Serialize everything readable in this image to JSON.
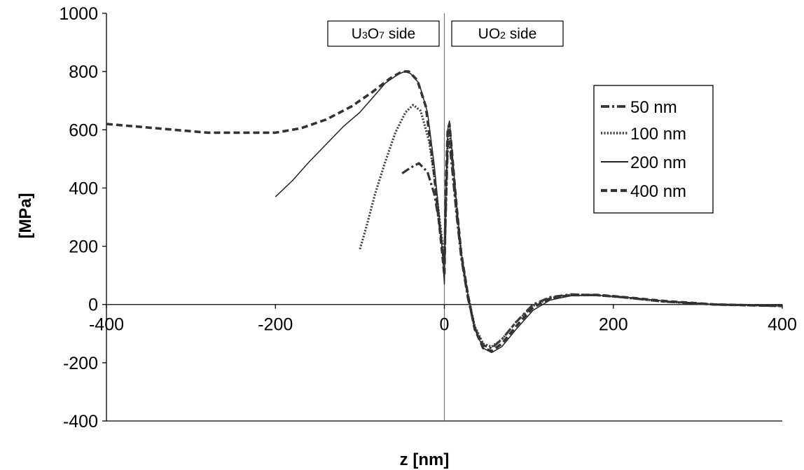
{
  "chart_data": {
    "type": "line",
    "xlabel": "z [nm]",
    "ylabel": "[MPa]",
    "xlim": [
      -400,
      400
    ],
    "ylim": [
      -400,
      1000
    ],
    "x_ticks": [
      "-400",
      "-200",
      "0",
      "200",
      "400"
    ],
    "y_ticks": [
      "1000",
      "800",
      "600",
      "400",
      "200",
      "0",
      "-200",
      "-400"
    ],
    "grid": false,
    "legend_position": "right",
    "annotations": [
      {
        "text_main": "U",
        "sub1": "3",
        "mid": "O",
        "sub2": "7",
        "text_rest": " side",
        "side": "left"
      },
      {
        "text_main": "UO",
        "sub1": "2",
        "mid": "",
        "sub2": "",
        "text_rest": " side",
        "side": "right"
      }
    ],
    "series": [
      {
        "name": "50 nm",
        "style": "dashdot",
        "color": "#333333",
        "points": [
          [
            -50,
            450
          ],
          [
            -40,
            470
          ],
          [
            -30,
            485
          ],
          [
            -20,
            455
          ],
          [
            -12,
            380
          ],
          [
            -6,
            280
          ],
          [
            -2,
            180
          ],
          [
            0,
            140
          ],
          [
            2,
            350
          ],
          [
            4,
            540
          ],
          [
            6,
            560
          ],
          [
            9,
            470
          ],
          [
            14,
            320
          ],
          [
            20,
            160
          ],
          [
            28,
            20
          ],
          [
            36,
            -80
          ],
          [
            46,
            -140
          ],
          [
            56,
            -150
          ],
          [
            68,
            -120
          ],
          [
            85,
            -60
          ],
          [
            105,
            0
          ],
          [
            125,
            25
          ],
          [
            150,
            35
          ],
          [
            180,
            32
          ],
          [
            210,
            25
          ],
          [
            260,
            10
          ],
          [
            320,
            0
          ],
          [
            400,
            -5
          ]
        ]
      },
      {
        "name": "100 nm",
        "style": "dotted",
        "color": "#444444",
        "points": [
          [
            -100,
            190
          ],
          [
            -92,
            270
          ],
          [
            -82,
            380
          ],
          [
            -70,
            490
          ],
          [
            -58,
            590
          ],
          [
            -46,
            660
          ],
          [
            -37,
            685
          ],
          [
            -28,
            665
          ],
          [
            -18,
            560
          ],
          [
            -10,
            400
          ],
          [
            -4,
            250
          ],
          [
            0,
            150
          ],
          [
            2,
            370
          ],
          [
            4,
            560
          ],
          [
            6,
            600
          ],
          [
            9,
            500
          ],
          [
            14,
            340
          ],
          [
            20,
            170
          ],
          [
            28,
            30
          ],
          [
            36,
            -75
          ],
          [
            46,
            -135
          ],
          [
            56,
            -145
          ],
          [
            68,
            -120
          ],
          [
            85,
            -60
          ],
          [
            105,
            -5
          ],
          [
            125,
            22
          ],
          [
            150,
            33
          ],
          [
            180,
            32
          ],
          [
            210,
            25
          ],
          [
            260,
            10
          ],
          [
            320,
            0
          ],
          [
            400,
            -5
          ]
        ]
      },
      {
        "name": "200 nm",
        "style": "solid",
        "color": "#222222",
        "points": [
          [
            -200,
            370
          ],
          [
            -180,
            425
          ],
          [
            -160,
            490
          ],
          [
            -140,
            550
          ],
          [
            -120,
            610
          ],
          [
            -100,
            660
          ],
          [
            -85,
            710
          ],
          [
            -70,
            760
          ],
          [
            -55,
            790
          ],
          [
            -47,
            800
          ],
          [
            -40,
            793
          ],
          [
            -30,
            760
          ],
          [
            -20,
            660
          ],
          [
            -12,
            480
          ],
          [
            -6,
            300
          ],
          [
            -2,
            170
          ],
          [
            0,
            70
          ],
          [
            2,
            420
          ],
          [
            4,
            600
          ],
          [
            6,
            630
          ],
          [
            9,
            530
          ],
          [
            14,
            360
          ],
          [
            20,
            180
          ],
          [
            28,
            30
          ],
          [
            36,
            -85
          ],
          [
            46,
            -150
          ],
          [
            56,
            -165
          ],
          [
            68,
            -145
          ],
          [
            85,
            -85
          ],
          [
            105,
            -20
          ],
          [
            125,
            15
          ],
          [
            150,
            30
          ],
          [
            180,
            32
          ],
          [
            210,
            26
          ],
          [
            260,
            12
          ],
          [
            320,
            0
          ],
          [
            400,
            -5
          ]
        ]
      },
      {
        "name": "400 nm",
        "style": "dashed",
        "color": "#333333",
        "points": [
          [
            -400,
            620
          ],
          [
            -360,
            610
          ],
          [
            -320,
            600
          ],
          [
            -280,
            590
          ],
          [
            -240,
            590
          ],
          [
            -200,
            590
          ],
          [
            -170,
            605
          ],
          [
            -140,
            635
          ],
          [
            -110,
            680
          ],
          [
            -85,
            730
          ],
          [
            -65,
            775
          ],
          [
            -50,
            800
          ],
          [
            -42,
            800
          ],
          [
            -32,
            770
          ],
          [
            -22,
            680
          ],
          [
            -14,
            500
          ],
          [
            -8,
            330
          ],
          [
            -3,
            190
          ],
          [
            0,
            100
          ],
          [
            2,
            430
          ],
          [
            4,
            600
          ],
          [
            6,
            620
          ],
          [
            9,
            520
          ],
          [
            14,
            350
          ],
          [
            20,
            175
          ],
          [
            28,
            30
          ],
          [
            36,
            -85
          ],
          [
            46,
            -150
          ],
          [
            56,
            -160
          ],
          [
            68,
            -135
          ],
          [
            85,
            -75
          ],
          [
            105,
            -10
          ],
          [
            125,
            20
          ],
          [
            150,
            32
          ],
          [
            180,
            33
          ],
          [
            210,
            26
          ],
          [
            260,
            12
          ],
          [
            320,
            0
          ],
          [
            400,
            -5
          ]
        ]
      }
    ]
  }
}
